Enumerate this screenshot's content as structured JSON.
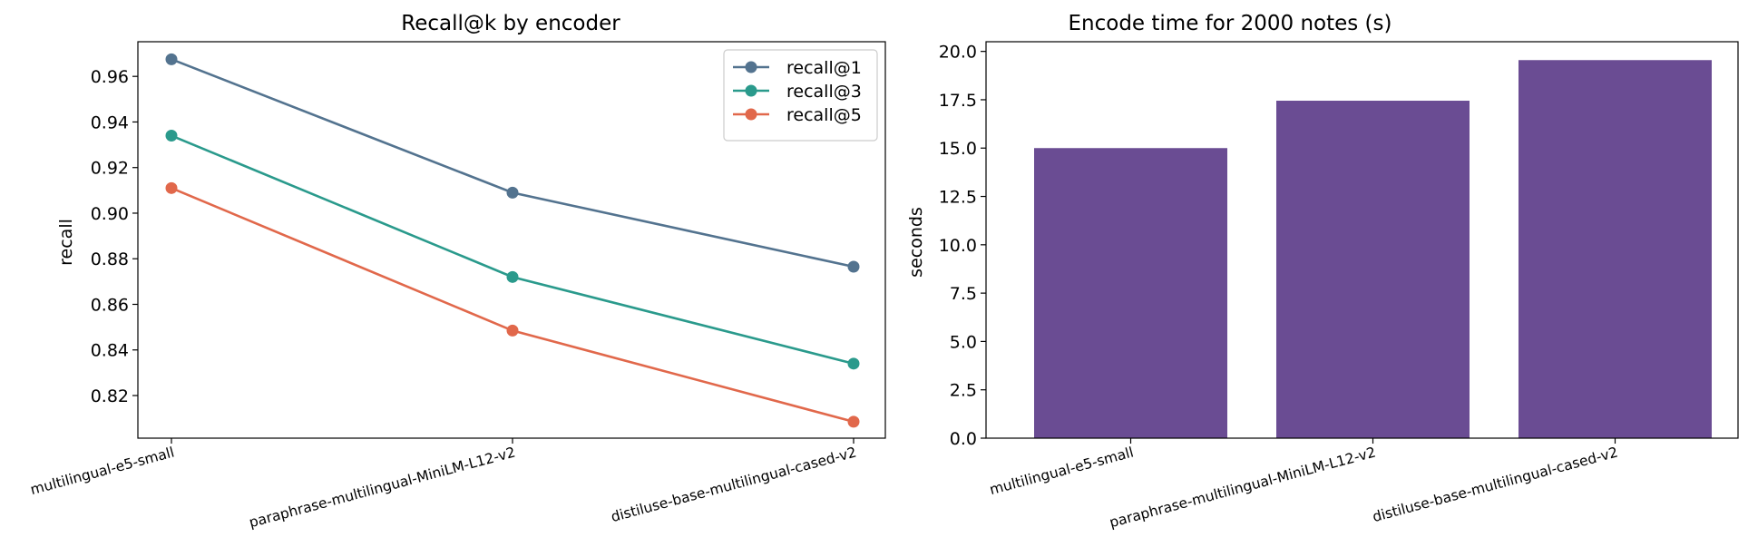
{
  "chart_data": [
    {
      "type": "line",
      "title": "Recall@k by encoder",
      "xlabel": "",
      "ylabel": "recall",
      "categories": [
        "multilingual-e5-small",
        "paraphrase-multilingual-MiniLM-L12-v2",
        "distiluse-base-multilingual-cased-v2"
      ],
      "series": [
        {
          "name": "recall@1",
          "values": [
            0.9675,
            0.909,
            0.8765
          ],
          "color": "#53738f"
        },
        {
          "name": "recall@3",
          "values": [
            0.934,
            0.872,
            0.834
          ],
          "color": "#2a9a8c"
        },
        {
          "name": "recall@5",
          "values": [
            0.911,
            0.8485,
            0.8085
          ],
          "color": "#e1684b"
        }
      ],
      "ylim": [
        0.8013,
        0.9752
      ],
      "yticks": [
        "0.82",
        "0.84",
        "0.86",
        "0.88",
        "0.90",
        "0.92",
        "0.94",
        "0.96"
      ],
      "grid": false,
      "legend": "top-right"
    },
    {
      "type": "bar",
      "title": "Encode time for 2000 notes (s)",
      "xlabel": "",
      "ylabel": "seconds",
      "categories": [
        "multilingual-e5-small",
        "paraphrase-multilingual-MiniLM-L12-v2",
        "distiluse-base-multilingual-cased-v2"
      ],
      "values": [
        15.0,
        17.45,
        19.55
      ],
      "color": "#6a4c93",
      "ylim": [
        0,
        20.5
      ],
      "yticks": [
        "0.0",
        "2.5",
        "5.0",
        "7.5",
        "10.0",
        "12.5",
        "15.0",
        "17.5",
        "20.0"
      ],
      "grid": false
    }
  ]
}
